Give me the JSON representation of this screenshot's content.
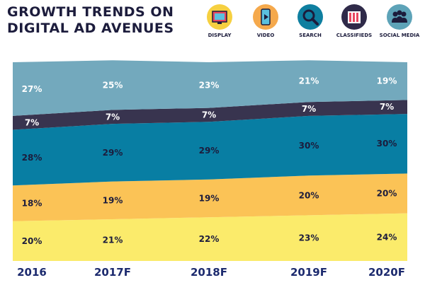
{
  "title": {
    "line1": "GROWTH TRENDS ON",
    "line2": "DIGITAL AD AVENUES"
  },
  "legend": [
    {
      "label": "DISPLAY",
      "icon": "display-icon",
      "circle_color": "#f6d040"
    },
    {
      "label": "VIDEO",
      "icon": "video-icon",
      "circle_color": "#f5a94c"
    },
    {
      "label": "SEARCH",
      "icon": "search-icon",
      "circle_color": "#0e7fa0"
    },
    {
      "label": "CLASSIFIEDS",
      "icon": "classifieds-icon",
      "circle_color": "#2f2a49"
    },
    {
      "label": "SOCIAL MEDIA",
      "icon": "social-media-icon",
      "circle_color": "#5da3b8"
    }
  ],
  "chart_data": {
    "type": "area",
    "stacked": true,
    "categories": [
      "2016",
      "2017F",
      "2018F",
      "2019F",
      "2020F"
    ],
    "series": [
      {
        "name": "DISPLAY",
        "values": [
          20,
          21,
          22,
          23,
          24
        ],
        "labels": [
          "20%",
          "21%",
          "22%",
          "23%",
          "24%"
        ],
        "color": "#fbeb6b"
      },
      {
        "name": "VIDEO",
        "values": [
          18,
          19,
          19,
          20,
          20
        ],
        "labels": [
          "18%",
          "19%",
          "19%",
          "20%",
          "20%"
        ],
        "color": "#fbc356"
      },
      {
        "name": "SEARCH",
        "values": [
          28,
          29,
          29,
          30,
          30
        ],
        "labels": [
          "28%",
          "29%",
          "29%",
          "30%",
          "30%"
        ],
        "color": "#087ea3"
      },
      {
        "name": "CLASSIFIEDS",
        "values": [
          7,
          7,
          7,
          7,
          7
        ],
        "labels": [
          "7%",
          "7%",
          "7%",
          "7%",
          "7%"
        ],
        "color": "#38344f"
      },
      {
        "name": "SOCIAL MEDIA",
        "values": [
          27,
          25,
          23,
          21,
          19
        ],
        "labels": [
          "27%",
          "25%",
          "23%",
          "21%",
          "19%"
        ],
        "color": "#73a9bd"
      }
    ],
    "label_colors": [
      "#1c1c3c",
      "#1c1c3c",
      "#1c1c3c",
      "#ffffff",
      "#ffffff"
    ],
    "ylim": [
      0,
      100
    ],
    "tick_color": "#1c2a6e"
  }
}
